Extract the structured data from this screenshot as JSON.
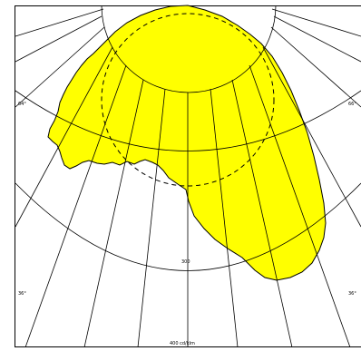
{
  "diagram": {
    "chart_type": "photometric polar diagram",
    "colors": {
      "fill": "#ffff00",
      "outline": "#000000",
      "grid": "#000000",
      "background": "#ffffff",
      "border": "#000000"
    },
    "labels": {
      "angle_left_top": "64°",
      "angle_right_top": "66°",
      "angle_left_bottom": "36°",
      "angle_right_bottom": "36°",
      "ring_value": "300",
      "unit": "400 cd/klm"
    }
  }
}
